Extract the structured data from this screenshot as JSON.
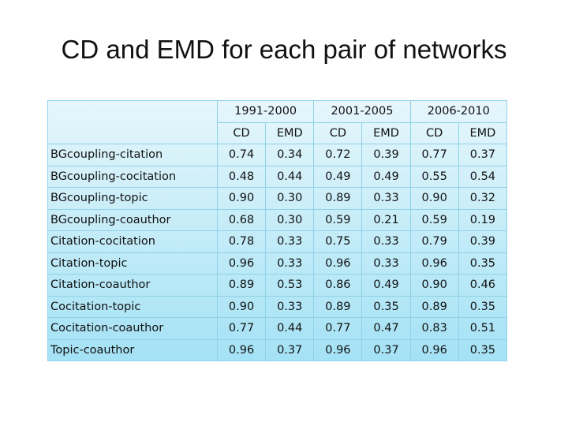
{
  "title": "CD and EMD for each pair of networks",
  "table": {
    "groups": [
      "1991-2000",
      "2001-2005",
      "2006-2010"
    ],
    "subheaders": [
      "CD",
      "EMD",
      "CD",
      "EMD",
      "CD",
      "EMD"
    ],
    "rows": [
      {
        "label": "BGcoupling-citation",
        "values": [
          "0.74",
          "0.34",
          "0.72",
          "0.39",
          "0.77",
          "0.37"
        ]
      },
      {
        "label": "BGcoupling-cocitation",
        "values": [
          "0.48",
          "0.44",
          "0.49",
          "0.49",
          "0.55",
          "0.54"
        ]
      },
      {
        "label": "BGcoupling-topic",
        "values": [
          "0.90",
          "0.30",
          "0.89",
          "0.33",
          "0.90",
          "0.32"
        ]
      },
      {
        "label": "BGcoupling-coauthor",
        "values": [
          "0.68",
          "0.30",
          "0.59",
          "0.21",
          "0.59",
          "0.19"
        ]
      },
      {
        "label": "Citation-cocitation",
        "values": [
          "0.78",
          "0.33",
          "0.75",
          "0.33",
          "0.79",
          "0.39"
        ]
      },
      {
        "label": "Citation-topic",
        "values": [
          "0.96",
          "0.33",
          "0.96",
          "0.33",
          "0.96",
          "0.35"
        ]
      },
      {
        "label": "Citation-coauthor",
        "values": [
          "0.89",
          "0.53",
          "0.86",
          "0.49",
          "0.90",
          "0.46"
        ]
      },
      {
        "label": "Cocitation-topic",
        "values": [
          "0.90",
          "0.33",
          "0.89",
          "0.35",
          "0.89",
          "0.35"
        ]
      },
      {
        "label": "Cocitation-coauthor",
        "values": [
          "0.77",
          "0.44",
          "0.77",
          "0.47",
          "0.83",
          "0.51"
        ]
      },
      {
        "label": "Topic-coauthor",
        "values": [
          "0.96",
          "0.37",
          "0.96",
          "0.37",
          "0.96",
          "0.35"
        ]
      }
    ]
  }
}
